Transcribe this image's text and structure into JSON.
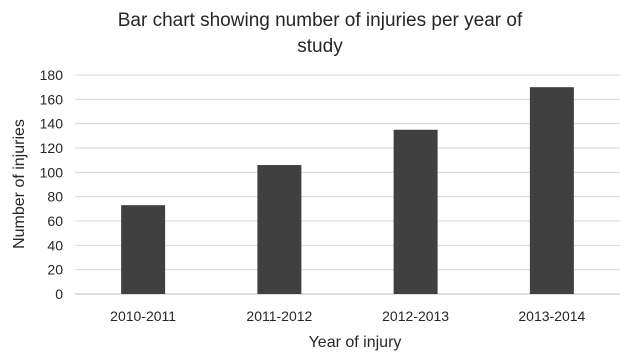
{
  "chart_data": {
    "type": "bar",
    "title_lines": [
      "Bar chart showing number of injuries per year of",
      "study"
    ],
    "xlabel": "Year of injury",
    "ylabel": "Number of injuries",
    "categories": [
      "2010-2011",
      "2011-2012",
      "2012-2013",
      "2013-2014"
    ],
    "values": [
      73,
      106,
      135,
      170
    ],
    "ylim": [
      0,
      180
    ],
    "yticks": [
      0,
      20,
      40,
      60,
      80,
      100,
      120,
      140,
      160,
      180
    ],
    "grid": true,
    "legend": "none",
    "bar_color": "#404040",
    "grid_color": "#d9d9d9"
  }
}
